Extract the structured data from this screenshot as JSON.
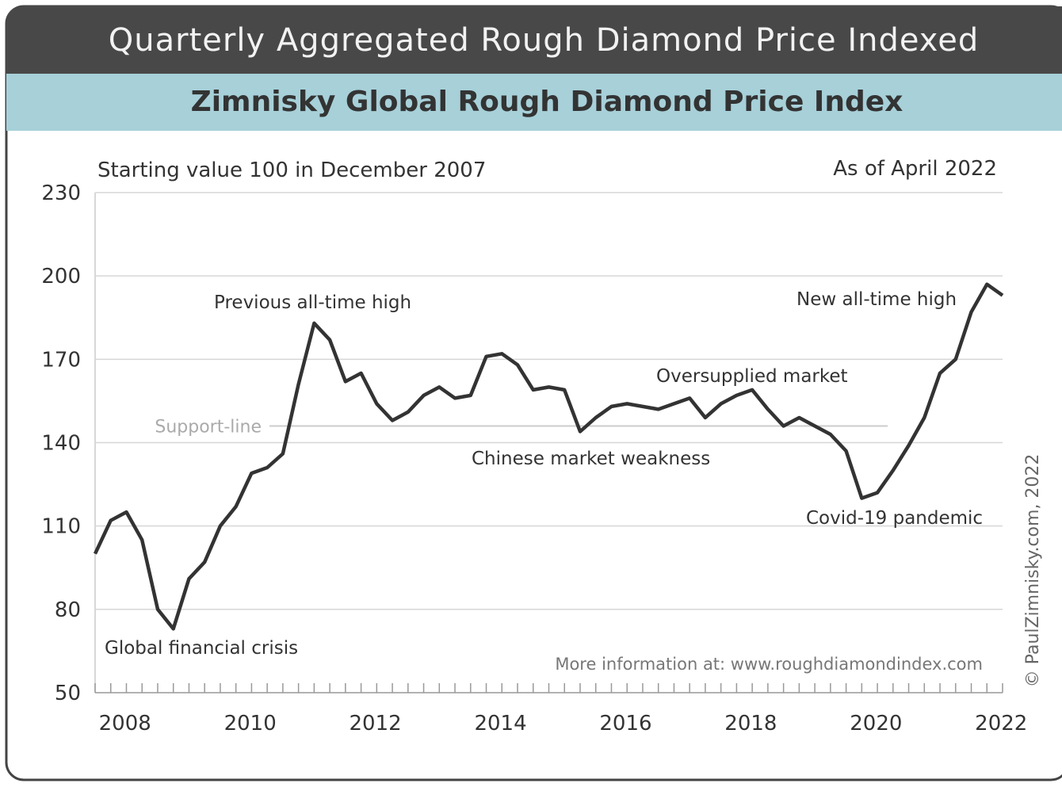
{
  "chart_data": {
    "type": "line",
    "title": "Quarterly Aggregated Rough Diamond Price Indexed",
    "subtitle": "Zimnisky Global Rough Diamond Price Index",
    "note_left": "Starting value 100 in December 2007",
    "note_right": "As of April 2022",
    "source": "More information at: www.roughdiamondindex.com",
    "copyright": "© PaulZimnisky.com, 2022",
    "x": [
      2007.75,
      2008.0,
      2008.25,
      2008.5,
      2008.75,
      2009.0,
      2009.25,
      2009.5,
      2009.75,
      2010.0,
      2010.25,
      2010.5,
      2010.75,
      2011.0,
      2011.25,
      2011.5,
      2011.75,
      2012.0,
      2012.25,
      2012.5,
      2012.75,
      2013.0,
      2013.25,
      2013.5,
      2013.75,
      2014.0,
      2014.25,
      2014.5,
      2014.75,
      2015.0,
      2015.25,
      2015.5,
      2015.75,
      2016.0,
      2016.25,
      2016.5,
      2016.75,
      2017.0,
      2017.25,
      2017.5,
      2017.75,
      2018.0,
      2018.25,
      2018.5,
      2018.75,
      2019.0,
      2019.25,
      2019.5,
      2019.75,
      2020.0,
      2020.25,
      2020.5,
      2020.75,
      2021.0,
      2021.25,
      2021.5,
      2021.75,
      2022.0,
      2022.25
    ],
    "series": [
      {
        "name": "Zimnisky Global Rough Diamond Price Index",
        "color": "#333333",
        "values": [
          100,
          112,
          115,
          105,
          80,
          73,
          91,
          97,
          110,
          117,
          129,
          131,
          136,
          161,
          183,
          177,
          162,
          165,
          154,
          148,
          151,
          157,
          160,
          156,
          157,
          171,
          172,
          168,
          159,
          160,
          159,
          144,
          149,
          153,
          154,
          153,
          152,
          154,
          156,
          149,
          154,
          157,
          159,
          152,
          146,
          149,
          146,
          143,
          137,
          120,
          122,
          130,
          139,
          149,
          165,
          170,
          187,
          197,
          193
        ]
      }
    ],
    "xlim": [
      2007.75,
      2022.25
    ],
    "xticks": [
      2008,
      2010,
      2012,
      2014,
      2016,
      2018,
      2020,
      2022
    ],
    "ylim": [
      50,
      230
    ],
    "yticks": [
      50,
      80,
      110,
      140,
      170,
      200,
      230
    ],
    "grid": true,
    "support_line": {
      "label": "Support-line",
      "value": 146
    },
    "annotations": [
      "Previous all-time high",
      "Chinese market weakness",
      "Oversupplied market",
      "New all-time high",
      "Covid-19 pandemic",
      "Global financial crisis"
    ]
  }
}
